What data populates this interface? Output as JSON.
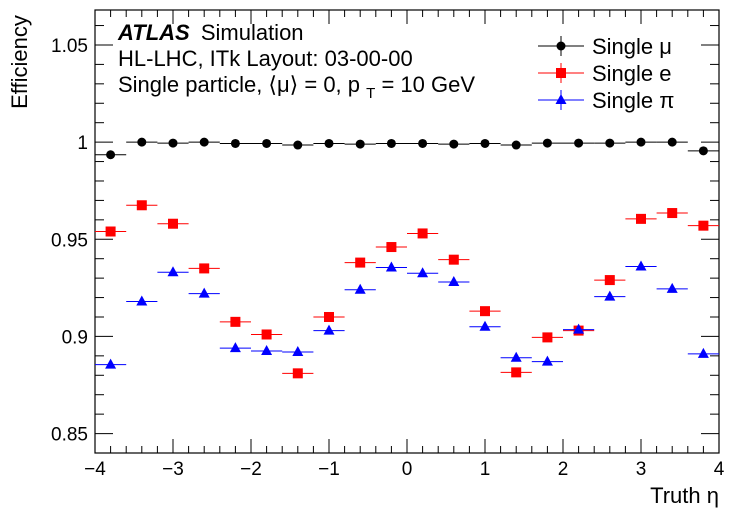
{
  "chart_data": {
    "type": "scatter",
    "xlabel": "Truth η",
    "ylabel": "Efficiency",
    "xlim": [
      -4,
      4
    ],
    "ylim": [
      0.84,
      1.068
    ],
    "x_ticks": [
      -4,
      -3,
      -2,
      -1,
      0,
      1,
      2,
      3,
      4
    ],
    "x_tick_labels": [
      "−4",
      "−3",
      "−2",
      "−1",
      "0",
      "1",
      "2",
      "3",
      "4"
    ],
    "y_ticks": [
      0.85,
      0.9,
      0.95,
      1,
      1.05
    ],
    "y_tick_labels": [
      "0.85",
      "0.9",
      "0.95",
      "1",
      "1.05"
    ],
    "bin_half_width": 0.2,
    "annotations": {
      "atlas": "ATLAS",
      "simulation": "Simulation",
      "line2": "HL-LHC, ITk Layout: 03-00-00",
      "line3_prefix": "Single particle, ⟨μ⟩ = 0, p",
      "line3_sub": "T",
      "line3_suffix": " = 10 GeV"
    },
    "legend_position": "top-right",
    "series": [
      {
        "name": "Single μ",
        "marker": "circle",
        "color": "#000000",
        "x": [
          -3.8,
          -3.4,
          -3.0,
          -2.6,
          -2.2,
          -1.8,
          -1.4,
          -1.0,
          -0.6,
          -0.2,
          0.2,
          0.6,
          1.0,
          1.4,
          1.8,
          2.2,
          2.6,
          3.0,
          3.4,
          3.8
        ],
        "y": [
          0.9935,
          1.0,
          0.9995,
          1.0,
          0.9993,
          0.9993,
          0.9985,
          0.9993,
          0.999,
          0.9993,
          0.9993,
          0.999,
          0.9993,
          0.9985,
          0.9995,
          0.9995,
          0.9995,
          1.0,
          1.0,
          0.9955
        ]
      },
      {
        "name": "Single e",
        "marker": "square",
        "color": "#ff0000",
        "x": [
          -3.8,
          -3.4,
          -3.0,
          -2.6,
          -2.2,
          -1.8,
          -1.4,
          -1.0,
          -0.6,
          -0.2,
          0.2,
          0.6,
          1.0,
          1.4,
          1.8,
          2.2,
          2.6,
          3.0,
          3.4,
          3.8
        ],
        "y": [
          0.954,
          0.9675,
          0.958,
          0.935,
          0.9075,
          0.901,
          0.881,
          0.91,
          0.938,
          0.946,
          0.953,
          0.9395,
          0.913,
          0.8815,
          0.8995,
          0.903,
          0.929,
          0.9605,
          0.9635,
          0.957
        ]
      },
      {
        "name": "Single π",
        "marker": "triangle",
        "color": "#0000ff",
        "x": [
          -3.8,
          -3.4,
          -3.0,
          -2.6,
          -2.2,
          -1.8,
          -1.4,
          -1.0,
          -0.6,
          -0.2,
          0.2,
          0.6,
          1.0,
          1.4,
          1.8,
          2.2,
          2.6,
          3.0,
          3.4,
          3.8
        ],
        "y": [
          0.8855,
          0.918,
          0.933,
          0.922,
          0.894,
          0.8925,
          0.892,
          0.903,
          0.924,
          0.9355,
          0.9325,
          0.928,
          0.905,
          0.889,
          0.887,
          0.9035,
          0.9205,
          0.936,
          0.9245,
          0.891
        ]
      }
    ]
  }
}
